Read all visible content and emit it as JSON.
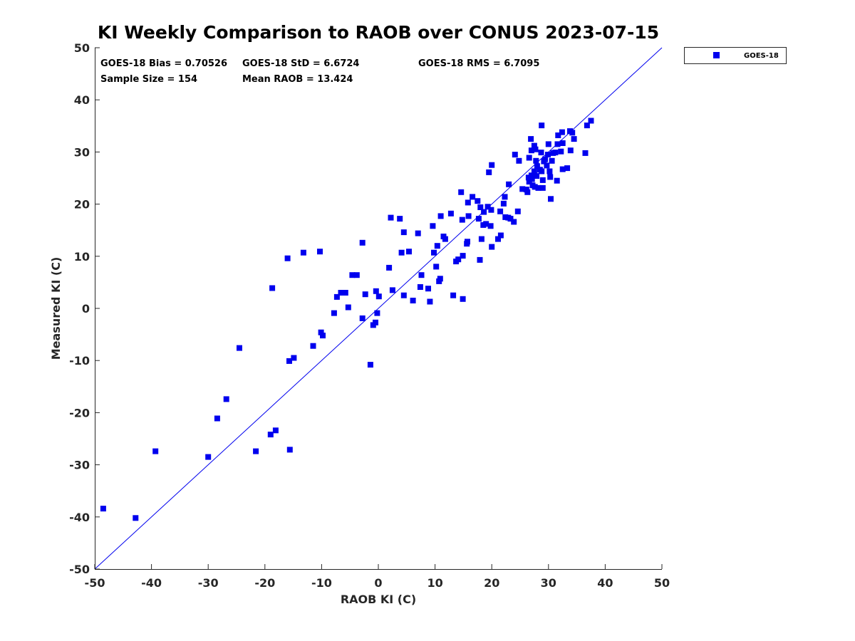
{
  "chart_data": {
    "type": "scatter",
    "title": "KI Weekly Comparison to RAOB over CONUS 2023-07-15",
    "xlabel": "RAOB KI (C)",
    "ylabel": "Measured KI (C)",
    "xlim": [
      -50,
      50
    ],
    "ylim": [
      -50,
      50
    ],
    "xticks": [
      -50,
      -40,
      -30,
      -20,
      -10,
      0,
      10,
      20,
      30,
      40,
      50
    ],
    "yticks": [
      -50,
      -40,
      -30,
      -20,
      -10,
      0,
      10,
      20,
      30,
      40,
      50
    ],
    "grid": false,
    "legend_position": "outside-top-right",
    "marker_color": "#0000ee",
    "line_color": "#0000ee",
    "reference_line": {
      "name": "one-to-one",
      "x": [
        -50,
        50
      ],
      "y": [
        -50,
        50
      ]
    },
    "stats": [
      "GOES-18 Bias = 0.70526",
      "GOES-18 StD = 6.6724",
      "GOES-18 RMS = 6.7095",
      "Sample Size = 154",
      "Mean RAOB = 13.424"
    ],
    "series": [
      {
        "name": "GOES-18",
        "points": [
          [
            -48.5,
            -38.4
          ],
          [
            -42.8,
            -40.2
          ],
          [
            -39.3,
            -27.4
          ],
          [
            -30,
            -28.5
          ],
          [
            -28.4,
            -21.1
          ],
          [
            -26.8,
            -17.4
          ],
          [
            -24.5,
            -7.6
          ],
          [
            -21.6,
            -27.4
          ],
          [
            -19,
            -24.2
          ],
          [
            -18.7,
            3.9
          ],
          [
            -18.1,
            -23.4
          ],
          [
            -16,
            9.6
          ],
          [
            -15.7,
            -10.1
          ],
          [
            -15.6,
            -27.1
          ],
          [
            -14.9,
            -9.5
          ],
          [
            -13.2,
            10.7
          ],
          [
            -11.5,
            -7.2
          ],
          [
            -10.3,
            10.9
          ],
          [
            -10.1,
            -4.6
          ],
          [
            -9.8,
            -5.2
          ],
          [
            -7.8,
            -0.9
          ],
          [
            -7.3,
            2.2
          ],
          [
            -6.6,
            3
          ],
          [
            -5.8,
            3
          ],
          [
            -5.3,
            0.2
          ],
          [
            -4.6,
            6.4
          ],
          [
            -3.8,
            6.4
          ],
          [
            -2.8,
            -1.9
          ],
          [
            -2.8,
            12.6
          ],
          [
            -2.3,
            2.7
          ],
          [
            -1.4,
            -10.8
          ],
          [
            -0.9,
            -3.2
          ],
          [
            -0.5,
            -2.7
          ],
          [
            -0.4,
            3.3
          ],
          [
            -0.2,
            -0.9
          ],
          [
            0.1,
            2.3
          ],
          [
            1.9,
            7.8
          ],
          [
            2.2,
            17.4
          ],
          [
            2.5,
            3.5
          ],
          [
            3.8,
            17.2
          ],
          [
            4.1,
            10.7
          ],
          [
            4.5,
            14.6
          ],
          [
            4.5,
            2.5
          ],
          [
            5.4,
            10.9
          ],
          [
            6.1,
            1.5
          ],
          [
            7,
            14.4
          ],
          [
            7.4,
            4.1
          ],
          [
            7.6,
            6.4
          ],
          [
            8.8,
            3.8
          ],
          [
            9.1,
            1.3
          ],
          [
            9.6,
            15.8
          ],
          [
            9.8,
            10.7
          ],
          [
            10.2,
            8
          ],
          [
            10.4,
            12
          ],
          [
            10.7,
            5.2
          ],
          [
            10.9,
            5.7
          ],
          [
            11,
            17.7
          ],
          [
            11.5,
            13.8
          ],
          [
            11.8,
            13.3
          ],
          [
            12.8,
            18.2
          ],
          [
            13.2,
            2.5
          ],
          [
            13.7,
            9
          ],
          [
            14.1,
            9.4
          ],
          [
            14.6,
            22.3
          ],
          [
            14.8,
            17
          ],
          [
            14.9,
            10.1
          ],
          [
            14.9,
            1.8
          ],
          [
            15.6,
            12.4
          ],
          [
            15.7,
            12.8
          ],
          [
            15.8,
            20.3
          ],
          [
            15.9,
            17.7
          ],
          [
            16.6,
            21.4
          ],
          [
            17.5,
            20.6
          ],
          [
            17.7,
            17.2
          ],
          [
            17.9,
            9.3
          ],
          [
            18,
            19.4
          ],
          [
            18.2,
            13.3
          ],
          [
            18.5,
            16
          ],
          [
            18.6,
            18.5
          ],
          [
            19,
            16.2
          ],
          [
            19.3,
            19.5
          ],
          [
            19.5,
            26.1
          ],
          [
            19.8,
            15.8
          ],
          [
            19.9,
            18.9
          ],
          [
            20,
            27.5
          ],
          [
            20,
            11.8
          ],
          [
            21.1,
            13.3
          ],
          [
            21.5,
            18.6
          ],
          [
            21.6,
            14
          ],
          [
            22.1,
            20.1
          ],
          [
            22.3,
            21.4
          ],
          [
            22.4,
            17.5
          ],
          [
            22.9,
            17.4
          ],
          [
            23,
            23.8
          ],
          [
            23.3,
            17.2
          ],
          [
            23.9,
            16.6
          ],
          [
            24.1,
            29.5
          ],
          [
            24.6,
            18.6
          ],
          [
            24.8,
            28.3
          ],
          [
            25.4,
            22.9
          ],
          [
            26.1,
            22.8
          ],
          [
            26.3,
            22.3
          ],
          [
            26.5,
            25.1
          ],
          [
            26.6,
            24.3
          ],
          [
            26.6,
            28.9
          ],
          [
            26.9,
            32.5
          ],
          [
            27,
            30.3
          ],
          [
            27,
            25.5
          ],
          [
            27.1,
            24.8
          ],
          [
            27.2,
            23.6
          ],
          [
            27.5,
            31.2
          ],
          [
            27.5,
            26.3
          ],
          [
            27.6,
            23.3
          ],
          [
            27.7,
            30.5
          ],
          [
            27.8,
            28.3
          ],
          [
            27.9,
            25.4
          ],
          [
            28,
            27.3
          ],
          [
            28.2,
            23.1
          ],
          [
            28.5,
            26.6
          ],
          [
            28.7,
            29.9
          ],
          [
            28.8,
            35.1
          ],
          [
            28.8,
            26.3
          ],
          [
            29,
            23.1
          ],
          [
            29,
            24.6
          ],
          [
            29.2,
            28.2
          ],
          [
            29.4,
            28.6
          ],
          [
            29.7,
            27.4
          ],
          [
            29.9,
            29.5
          ],
          [
            30,
            31.5
          ],
          [
            30.2,
            26.3
          ],
          [
            30.3,
            25.2
          ],
          [
            30.4,
            21
          ],
          [
            30.6,
            28.3
          ],
          [
            30.8,
            29.8
          ],
          [
            31.2,
            29.9
          ],
          [
            31.5,
            24.5
          ],
          [
            31.6,
            31.5
          ],
          [
            31.7,
            33.2
          ],
          [
            32.2,
            30.1
          ],
          [
            32.4,
            33.8
          ],
          [
            32.5,
            31.7
          ],
          [
            32.5,
            26.7
          ],
          [
            33.3,
            26.9
          ],
          [
            33.8,
            34
          ],
          [
            33.9,
            30.3
          ],
          [
            34.2,
            33.7
          ],
          [
            34.5,
            32.5
          ],
          [
            36.5,
            29.8
          ],
          [
            36.8,
            35.1
          ],
          [
            37.5,
            36
          ]
        ]
      }
    ]
  },
  "legend": {
    "label": "GOES-18"
  },
  "colors": {
    "marker": "#0000ee",
    "axis": "#262626",
    "background": "#ffffff"
  }
}
